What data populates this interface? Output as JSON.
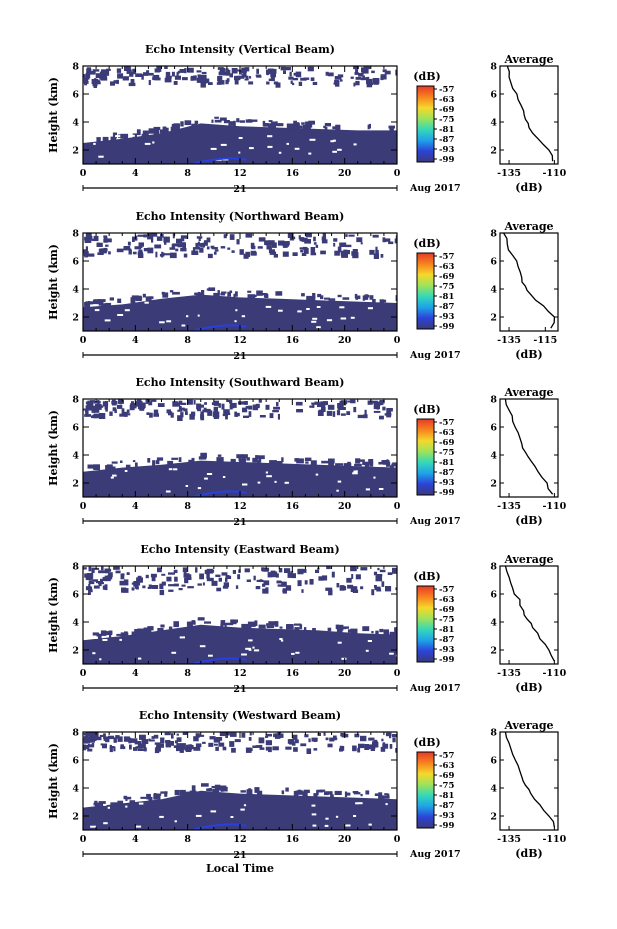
{
  "chart_data": [
    {
      "type": "heatmap",
      "title": "Echo Intensity (Vertical Beam)",
      "ylabel": "Height (km)",
      "xlabel": "",
      "x_ticks": [
        "0",
        "4",
        "8",
        "12",
        "16",
        "20",
        "0"
      ],
      "y_ticks": [
        "2",
        "4",
        "6",
        "8"
      ],
      "xlim": [
        0,
        24
      ],
      "ylim": [
        1,
        8
      ],
      "day_label": "21",
      "date_label": "Aug 2017",
      "colorbar": {
        "label": "(dB)",
        "ticks": [
          "-57",
          "-63",
          "-69",
          "-75",
          "-81",
          "-87",
          "-93",
          "-99"
        ],
        "colors": [
          "#e63a2a",
          "#f7821e",
          "#f5d82a",
          "#9ee35a",
          "#35d8b8",
          "#1fa3e8",
          "#2c43d8",
          "#3a3a7a"
        ]
      },
      "echo_layer": {
        "base_top_km": [
          2.5,
          2.8,
          3.2,
          3.9,
          3.7,
          3.6,
          3.5,
          3.4,
          3.4
        ],
        "upper_region_km": [
          6.8,
          8.0
        ],
        "dense_color": "#3b3b78",
        "faint_color": "#2a3fe0"
      },
      "average": {
        "title": "Average",
        "xlabel": "(dB)",
        "x_ticks": [
          "-135",
          "-110"
        ],
        "xlim": [
          -140,
          -108
        ],
        "y_ticks": [
          "2",
          "4",
          "6",
          "8"
        ],
        "ylim": [
          1,
          8
        ],
        "profile_db": [
          -111,
          -113,
          -119,
          -124,
          -126,
          -127,
          -130,
          -133,
          -135,
          -136
        ],
        "profile_km": [
          1.2,
          2.0,
          2.8,
          3.6,
          4.2,
          4.8,
          5.6,
          6.4,
          7.2,
          8.0
        ]
      }
    },
    {
      "type": "heatmap",
      "title": "Echo Intensity (Northward Beam)",
      "ylabel": "Height (km)",
      "xlabel": "",
      "x_ticks": [
        "0",
        "4",
        "8",
        "12",
        "16",
        "20",
        "0"
      ],
      "y_ticks": [
        "2",
        "4",
        "6",
        "8"
      ],
      "xlim": [
        0,
        24
      ],
      "ylim": [
        1,
        8
      ],
      "day_label": "21",
      "date_label": "Aug 2017",
      "colorbar": {
        "label": "(dB)",
        "ticks": [
          "-57",
          "-63",
          "-69",
          "-75",
          "-81",
          "-87",
          "-93",
          "-99"
        ],
        "colors": [
          "#e63a2a",
          "#f7821e",
          "#f5d82a",
          "#9ee35a",
          "#35d8b8",
          "#1fa3e8",
          "#2c43d8",
          "#3a3a7a"
        ]
      },
      "echo_layer": {
        "base_top_km": [
          2.7,
          2.9,
          3.3,
          3.6,
          3.4,
          3.3,
          3.2,
          3.1,
          3.0
        ],
        "upper_region_km": [
          6.5,
          8.0
        ],
        "dense_color": "#3b3b78",
        "faint_color": "#2a3fe0"
      },
      "average": {
        "title": "Average",
        "xlabel": "(dB)",
        "x_ticks": [
          "-135",
          "-115"
        ],
        "xlim": [
          -140,
          -108
        ],
        "y_ticks": [
          "2",
          "4",
          "6",
          "8"
        ],
        "ylim": [
          1,
          8
        ],
        "profile_db": [
          -112,
          -110,
          -116,
          -123,
          -126,
          -128,
          -130,
          -133,
          -136,
          -138
        ],
        "profile_km": [
          1.2,
          2.0,
          2.8,
          3.6,
          4.2,
          4.8,
          5.6,
          6.4,
          7.2,
          8.0
        ]
      }
    },
    {
      "type": "heatmap",
      "title": "Echo Intensity (Southward Beam)",
      "ylabel": "Height (km)",
      "xlabel": "",
      "x_ticks": [
        "0",
        "4",
        "8",
        "12",
        "16",
        "20",
        "0"
      ],
      "y_ticks": [
        "2",
        "4",
        "6",
        "8"
      ],
      "xlim": [
        0,
        24
      ],
      "ylim": [
        1,
        8
      ],
      "day_label": "21",
      "date_label": "Aug 2017",
      "colorbar": {
        "label": "(dB)",
        "ticks": [
          "-57",
          "-63",
          "-69",
          "-75",
          "-81",
          "-87",
          "-93",
          "-99"
        ],
        "colors": [
          "#e63a2a",
          "#f7821e",
          "#f5d82a",
          "#9ee35a",
          "#35d8b8",
          "#1fa3e8",
          "#2c43d8",
          "#3a3a7a"
        ]
      },
      "echo_layer": {
        "base_top_km": [
          2.8,
          3.1,
          3.3,
          3.6,
          3.5,
          3.4,
          3.3,
          3.2,
          3.1
        ],
        "upper_region_km": [
          6.8,
          8.0
        ],
        "dense_color": "#3b3b78",
        "faint_color": "#2a3fe0"
      },
      "average": {
        "title": "Average",
        "xlabel": "(dB)",
        "x_ticks": [
          "-135",
          "-110"
        ],
        "xlim": [
          -140,
          -108
        ],
        "y_ticks": [
          "2",
          "4",
          "6",
          "8"
        ],
        "ylim": [
          1,
          8
        ],
        "profile_db": [
          -111,
          -114,
          -119,
          -123,
          -126,
          -128,
          -130,
          -133,
          -135,
          -137
        ],
        "profile_km": [
          1.2,
          2.0,
          2.8,
          3.6,
          4.2,
          4.8,
          5.6,
          6.4,
          7.2,
          8.0
        ]
      }
    },
    {
      "type": "heatmap",
      "title": "Echo Intensity (Eastward Beam)",
      "ylabel": "Height (km)",
      "xlabel": "",
      "x_ticks": [
        "0",
        "4",
        "8",
        "12",
        "16",
        "20",
        "0"
      ],
      "y_ticks": [
        "2",
        "4",
        "6",
        "8"
      ],
      "xlim": [
        0,
        24
      ],
      "ylim": [
        1,
        8
      ],
      "day_label": "21",
      "date_label": "Aug 2017",
      "colorbar": {
        "label": "(dB)",
        "ticks": [
          "-57",
          "-63",
          "-69",
          "-75",
          "-81",
          "-87",
          "-93",
          "-99"
        ],
        "colors": [
          "#e63a2a",
          "#f7821e",
          "#f5d82a",
          "#9ee35a",
          "#35d8b8",
          "#1fa3e8",
          "#2c43d8",
          "#3a3a7a"
        ]
      },
      "echo_layer": {
        "base_top_km": [
          2.7,
          3.0,
          3.4,
          3.8,
          3.6,
          3.5,
          3.4,
          3.2,
          3.1
        ],
        "upper_region_km": [
          6.3,
          8.0
        ],
        "dense_color": "#3b3b78",
        "faint_color": "#2a3fe0"
      },
      "average": {
        "title": "Average",
        "xlabel": "(dB)",
        "x_ticks": [
          "-135",
          "-110"
        ],
        "xlim": [
          -140,
          -108
        ],
        "y_ticks": [
          "2",
          "4",
          "6",
          "8"
        ],
        "ylim": [
          1,
          8
        ],
        "profile_db": [
          -110,
          -113,
          -118,
          -122,
          -125,
          -127,
          -129,
          -133,
          -135,
          -137
        ],
        "profile_km": [
          1.2,
          2.0,
          2.8,
          3.6,
          4.2,
          4.8,
          5.6,
          6.4,
          7.2,
          8.0
        ]
      }
    },
    {
      "type": "heatmap",
      "title": "Echo Intensity (Westward Beam)",
      "ylabel": "Height (km)",
      "xlabel": "Local Time",
      "x_ticks": [
        "0",
        "4",
        "8",
        "12",
        "16",
        "20",
        "0"
      ],
      "y_ticks": [
        "2",
        "4",
        "6",
        "8"
      ],
      "xlim": [
        0,
        24
      ],
      "ylim": [
        1,
        8
      ],
      "day_label": "21",
      "date_label": "Aug 2017",
      "colorbar": {
        "label": "(dB)",
        "ticks": [
          "-57",
          "-63",
          "-69",
          "-75",
          "-81",
          "-87",
          "-93",
          "-99"
        ],
        "colors": [
          "#e63a2a",
          "#f7821e",
          "#f5d82a",
          "#9ee35a",
          "#35d8b8",
          "#1fa3e8",
          "#2c43d8",
          "#3a3a7a"
        ]
      },
      "echo_layer": {
        "base_top_km": [
          2.6,
          2.9,
          3.2,
          3.8,
          3.6,
          3.5,
          3.4,
          3.3,
          3.2
        ],
        "upper_region_km": [
          6.8,
          8.0
        ],
        "dense_color": "#3b3b78",
        "faint_color": "#2a3fe0"
      },
      "average": {
        "title": "Average",
        "xlabel": "(dB)",
        "x_ticks": [
          "-135",
          "-110"
        ],
        "xlim": [
          -140,
          -108
        ],
        "y_ticks": [
          "2",
          "4",
          "6",
          "8"
        ],
        "ylim": [
          1,
          8
        ],
        "profile_db": [
          -110,
          -113,
          -118,
          -123,
          -126,
          -128,
          -130,
          -133,
          -135,
          -137
        ],
        "profile_km": [
          1.2,
          2.0,
          2.8,
          3.6,
          4.2,
          4.8,
          5.6,
          6.4,
          7.2,
          8.0
        ]
      }
    }
  ]
}
